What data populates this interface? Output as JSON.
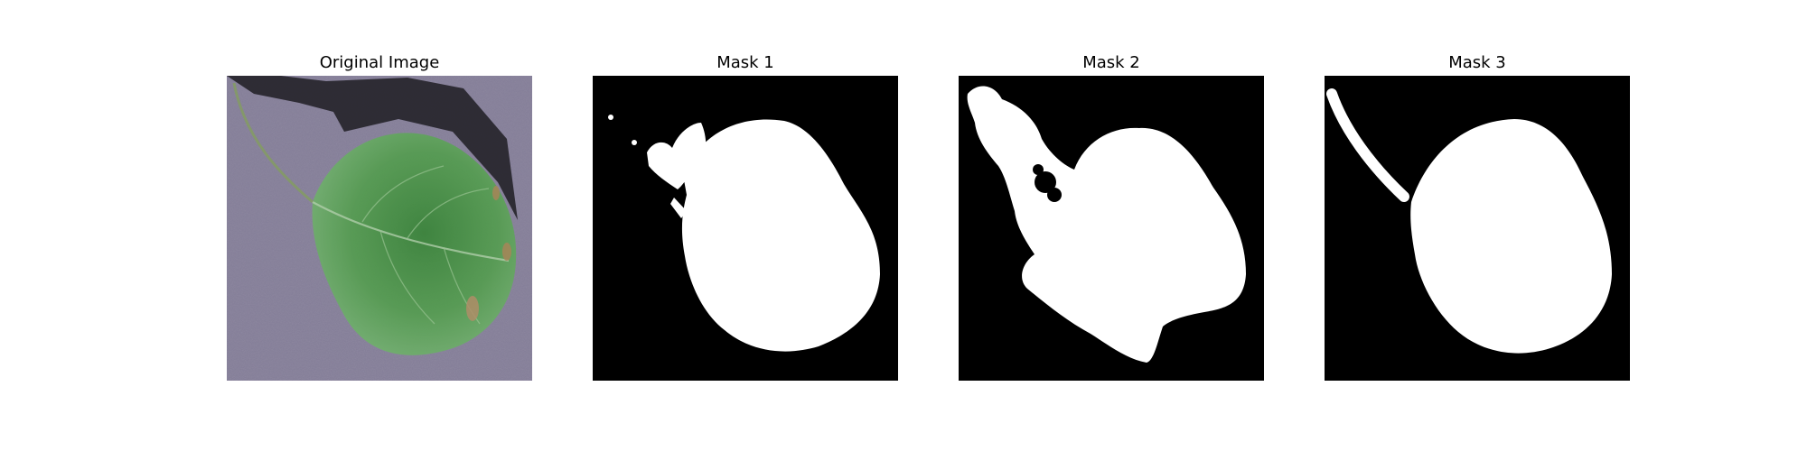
{
  "figure": {
    "panels": [
      {
        "title": "Original Image",
        "kind": "photo"
      },
      {
        "title": "Mask 1",
        "kind": "mask"
      },
      {
        "title": "Mask 2",
        "kind": "mask"
      },
      {
        "title": "Mask 3",
        "kind": "mask"
      }
    ]
  },
  "colors": {
    "mask_background": "#000000",
    "mask_foreground": "#ffffff",
    "photo_background": "#77708c",
    "leaf_green": "#3f8a3c",
    "leaf_dark": "#1f5a22",
    "shadow": "#14121a",
    "spot_brown": "#a07a4a"
  }
}
